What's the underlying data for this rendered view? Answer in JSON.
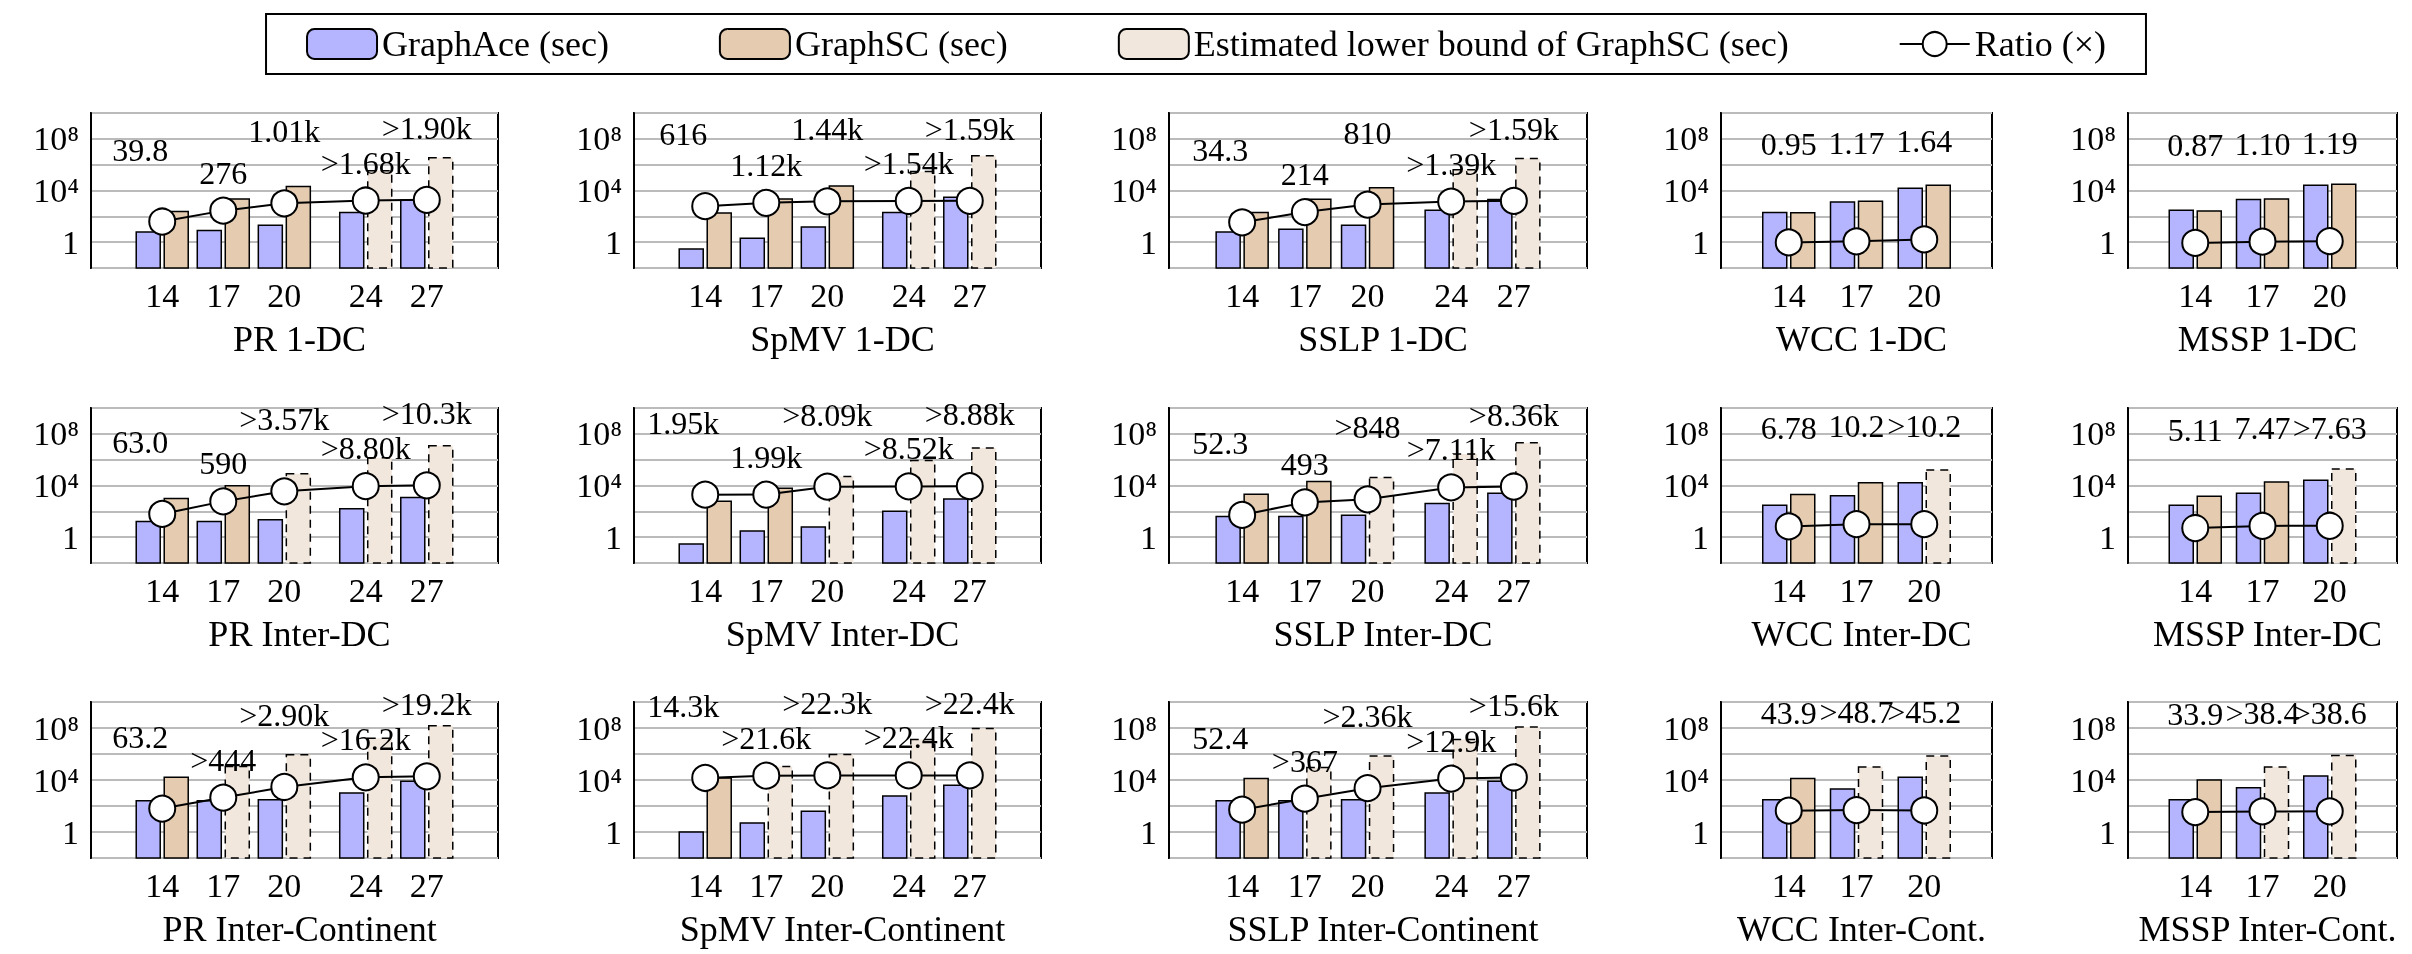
{
  "chart_data": [
    {
      "type": "bar",
      "title": "PR 1-DC",
      "x": [
        14,
        17,
        20,
        24,
        27
      ],
      "xlim": [
        10.5,
        30.5
      ],
      "xticks": [
        14,
        17,
        20,
        24,
        27
      ],
      "log": true,
      "ylim": [
        0.01,
        10000000000
      ],
      "yticks": [
        {
          "value": 1,
          "label": "1"
        },
        {
          "value": 10000,
          "label": "10⁴"
        },
        {
          "value": 100000000,
          "label": "10⁸"
        }
      ],
      "grid": "y",
      "legend": "top",
      "marker": "circle",
      "series": [
        {
          "name": "GraphAce (sec)",
          "type": "bar",
          "color": "#b4b4ff",
          "values": [
            6,
            8,
            20,
            200,
            1800
          ]
        },
        {
          "name": "GraphSC (sec)",
          "type": "bar",
          "color": "#e5ccb0",
          "values": [
            240,
            2200,
            20000,
            null,
            null
          ]
        },
        {
          "name": "Estimated lower bound of GraphSC (sec)",
          "type": "bar",
          "color": "#f2e7dc",
          "line_style": "dashed",
          "values": [
            null,
            null,
            null,
            340000,
            3400000
          ]
        },
        {
          "name": "Ratio (×)",
          "type": "line",
          "color": "#ffffff",
          "values": [
            39.8,
            276,
            1010,
            1680,
            1900
          ],
          "value_labels": [
            "39.8",
            "276",
            "1.01k",
            ">1.68k",
            ">1.90k"
          ]
        }
      ]
    },
    {
      "type": "bar",
      "title": "SpMV 1-DC",
      "x": [
        14,
        17,
        20,
        24,
        27
      ],
      "xlim": [
        10.5,
        30.5
      ],
      "xticks": [
        14,
        17,
        20,
        24,
        27
      ],
      "log": true,
      "ylim": [
        0.01,
        10000000000
      ],
      "yticks": [
        {
          "value": 1,
          "label": "1"
        },
        {
          "value": 10000,
          "label": "10⁴"
        },
        {
          "value": 100000000,
          "label": "10⁸"
        }
      ],
      "grid": "y",
      "marker": "circle",
      "series": [
        {
          "type": "bar",
          "color": "#b4b4ff",
          "values": [
            0.3,
            2,
            15,
            200,
            3000
          ]
        },
        {
          "type": "bar",
          "color": "#e5ccb0",
          "values": [
            185,
            2200,
            22000,
            null,
            null
          ]
        },
        {
          "type": "bar",
          "color": "#f2e7dc",
          "line_style": "dashed",
          "values": [
            null,
            null,
            null,
            300000,
            5000000
          ]
        },
        {
          "type": "line",
          "color": "#ffffff",
          "values": [
            616,
            1120,
            1440,
            1540,
            1590
          ],
          "value_labels": [
            "616",
            "1.12k",
            "1.44k",
            ">1.54k",
            ">1.59k"
          ]
        }
      ]
    },
    {
      "type": "bar",
      "title": "SSLP 1-DC",
      "x": [
        14,
        17,
        20,
        24,
        27
      ],
      "xlim": [
        10.5,
        30.5
      ],
      "xticks": [
        14,
        17,
        20,
        24,
        27
      ],
      "log": true,
      "ylim": [
        0.01,
        10000000000
      ],
      "yticks": [
        {
          "value": 1,
          "label": "1"
        },
        {
          "value": 10000,
          "label": "10⁴"
        },
        {
          "value": 100000000,
          "label": "10⁸"
        }
      ],
      "grid": "y",
      "marker": "circle",
      "series": [
        {
          "type": "bar",
          "color": "#b4b4ff",
          "values": [
            6,
            10,
            20,
            300,
            2000
          ]
        },
        {
          "type": "bar",
          "color": "#e5ccb0",
          "values": [
            200,
            2100,
            16000,
            null,
            null
          ]
        },
        {
          "type": "bar",
          "color": "#f2e7dc",
          "line_style": "dashed",
          "values": [
            null,
            null,
            null,
            400000,
            3000000
          ]
        },
        {
          "type": "line",
          "color": "#ffffff",
          "values": [
            34.3,
            214,
            810,
            1390,
            1590
          ],
          "value_labels": [
            "34.3",
            "214",
            "810",
            ">1.39k",
            ">1.59k"
          ]
        }
      ]
    },
    {
      "type": "bar",
      "title": "WCC 1-DC",
      "x": [
        14,
        17,
        20
      ],
      "xlim": [
        11,
        23
      ],
      "xticks": [
        14,
        17,
        20
      ],
      "log": true,
      "ylim": [
        0.01,
        10000000000
      ],
      "yticks": [
        {
          "value": 1,
          "label": "1"
        },
        {
          "value": 10000,
          "label": "10⁴"
        },
        {
          "value": 100000000,
          "label": "10⁸"
        }
      ],
      "grid": "y",
      "marker": "circle",
      "series": [
        {
          "type": "bar",
          "color": "#b4b4ff",
          "values": [
            200,
            1300,
            15000
          ]
        },
        {
          "type": "bar",
          "color": "#e5ccb0",
          "values": [
            190,
            1500,
            25000
          ]
        },
        {
          "type": "line",
          "color": "#ffffff",
          "values": [
            0.95,
            1.17,
            1.64
          ],
          "value_labels": [
            "0.95",
            "1.17",
            "1.64"
          ]
        }
      ]
    },
    {
      "type": "bar",
      "title": "MSSP 1-DC",
      "x": [
        14,
        17,
        20
      ],
      "xlim": [
        11,
        23
      ],
      "xticks": [
        14,
        17,
        20
      ],
      "log": true,
      "ylim": [
        0.01,
        10000000000
      ],
      "yticks": [
        {
          "value": 1,
          "label": "1"
        },
        {
          "value": 10000,
          "label": "10⁴"
        },
        {
          "value": 100000000,
          "label": "10⁸"
        }
      ],
      "grid": "y",
      "marker": "circle",
      "series": [
        {
          "type": "bar",
          "color": "#b4b4ff",
          "values": [
            300,
            2000,
            25000
          ]
        },
        {
          "type": "bar",
          "color": "#e5ccb0",
          "values": [
            260,
            2200,
            30000
          ]
        },
        {
          "type": "line",
          "color": "#ffffff",
          "values": [
            0.87,
            1.1,
            1.19
          ],
          "value_labels": [
            "0.87",
            "1.10",
            "1.19"
          ]
        }
      ]
    },
    {
      "type": "bar",
      "title": "PR Inter-DC",
      "x": [
        14,
        17,
        20,
        24,
        27
      ],
      "xlim": [
        10.5,
        30.5
      ],
      "xticks": [
        14,
        17,
        20,
        24,
        27
      ],
      "log": true,
      "ylim": [
        0.01,
        10000000000
      ],
      "yticks": [
        {
          "value": 1,
          "label": "1"
        },
        {
          "value": 10000,
          "label": "10⁴"
        },
        {
          "value": 100000000,
          "label": "10⁸"
        }
      ],
      "grid": "y",
      "marker": "circle",
      "series": [
        {
          "type": "bar",
          "color": "#b4b4ff",
          "values": [
            16,
            16,
            22,
            160,
            1200
          ]
        },
        {
          "type": "bar",
          "color": "#e5ccb0",
          "values": [
            1000,
            9400,
            null,
            null,
            null
          ]
        },
        {
          "type": "bar",
          "color": "#f2e7dc",
          "line_style": "dashed",
          "values": [
            null,
            null,
            80000,
            1400000,
            12000000
          ]
        },
        {
          "type": "line",
          "color": "#ffffff",
          "values": [
            63.0,
            590,
            3570,
            8800,
            10300
          ],
          "value_labels": [
            "63.0",
            "590",
            ">3.57k",
            ">8.80k",
            ">10.3k"
          ]
        }
      ]
    },
    {
      "type": "bar",
      "title": "SpMV Inter-DC",
      "x": [
        14,
        17,
        20,
        24,
        27
      ],
      "xlim": [
        10.5,
        30.5
      ],
      "xticks": [
        14,
        17,
        20,
        24,
        27
      ],
      "log": true,
      "ylim": [
        0.01,
        10000000000
      ],
      "yticks": [
        {
          "value": 1,
          "label": "1"
        },
        {
          "value": 10000,
          "label": "10⁴"
        },
        {
          "value": 100000000,
          "label": "10⁸"
        }
      ],
      "grid": "y",
      "marker": "circle",
      "series": [
        {
          "type": "bar",
          "color": "#b4b4ff",
          "values": [
            0.3,
            3,
            6,
            100,
            900
          ]
        },
        {
          "type": "bar",
          "color": "#e5ccb0",
          "values": [
            600,
            6000,
            null,
            null,
            null
          ]
        },
        {
          "type": "bar",
          "color": "#f2e7dc",
          "line_style": "dashed",
          "values": [
            null,
            null,
            50000,
            850000,
            8000000
          ]
        },
        {
          "type": "line",
          "color": "#ffffff",
          "values": [
            1950,
            1990,
            8090,
            8520,
            8880
          ],
          "value_labels": [
            "1.95k",
            "1.99k",
            ">8.09k",
            ">8.52k",
            ">8.88k"
          ]
        }
      ]
    },
    {
      "type": "bar",
      "title": "SSLP Inter-DC",
      "x": [
        14,
        17,
        20,
        24,
        27
      ],
      "xlim": [
        10.5,
        30.5
      ],
      "xticks": [
        14,
        17,
        20,
        24,
        27
      ],
      "log": true,
      "ylim": [
        0.01,
        10000000000
      ],
      "yticks": [
        {
          "value": 1,
          "label": "1"
        },
        {
          "value": 10000,
          "label": "10⁴"
        },
        {
          "value": 100000000,
          "label": "10⁸"
        }
      ],
      "grid": "y",
      "marker": "circle",
      "series": [
        {
          "type": "bar",
          "color": "#b4b4ff",
          "values": [
            40,
            40,
            50,
            400,
            2500
          ]
        },
        {
          "type": "bar",
          "color": "#e5ccb0",
          "values": [
            2100,
            20000,
            null,
            null,
            null
          ]
        },
        {
          "type": "bar",
          "color": "#f2e7dc",
          "line_style": "dashed",
          "values": [
            null,
            null,
            42000,
            2800000,
            20000000
          ]
        },
        {
          "type": "line",
          "color": "#ffffff",
          "values": [
            52.3,
            493,
            848,
            7110,
            8360
          ],
          "value_labels": [
            "52.3",
            "493",
            ">848",
            ">7.11k",
            ">8.36k"
          ]
        }
      ]
    },
    {
      "type": "bar",
      "title": "WCC Inter-DC",
      "x": [
        14,
        17,
        20
      ],
      "xlim": [
        11,
        23
      ],
      "xticks": [
        14,
        17,
        20
      ],
      "log": true,
      "ylim": [
        0.01,
        10000000000
      ],
      "yticks": [
        {
          "value": 1,
          "label": "1"
        },
        {
          "value": 10000,
          "label": "10⁴"
        },
        {
          "value": 100000000,
          "label": "10⁸"
        }
      ],
      "grid": "y",
      "marker": "circle",
      "series": [
        {
          "type": "bar",
          "color": "#b4b4ff",
          "values": [
            300,
            1600,
            16000
          ]
        },
        {
          "type": "bar",
          "color": "#e5ccb0",
          "values": [
            2000,
            16000,
            null
          ]
        },
        {
          "type": "bar",
          "color": "#f2e7dc",
          "line_style": "dashed",
          "values": [
            null,
            null,
            160000
          ]
        },
        {
          "type": "line",
          "color": "#ffffff",
          "values": [
            6.78,
            10.2,
            10.2
          ],
          "value_labels": [
            "6.78",
            "10.2",
            ">10.2"
          ]
        }
      ]
    },
    {
      "type": "bar",
      "title": "MSSP Inter-DC",
      "x": [
        14,
        17,
        20
      ],
      "xlim": [
        11,
        23
      ],
      "xticks": [
        14,
        17,
        20
      ],
      "log": true,
      "ylim": [
        0.01,
        10000000000
      ],
      "yticks": [
        {
          "value": 1,
          "label": "1"
        },
        {
          "value": 10000,
          "label": "10⁴"
        },
        {
          "value": 100000000,
          "label": "10⁸"
        }
      ],
      "grid": "y",
      "marker": "circle",
      "series": [
        {
          "type": "bar",
          "color": "#b4b4ff",
          "values": [
            300,
            2500,
            25000
          ]
        },
        {
          "type": "bar",
          "color": "#e5ccb0",
          "values": [
            1500,
            19000,
            null
          ]
        },
        {
          "type": "bar",
          "color": "#f2e7dc",
          "line_style": "dashed",
          "values": [
            null,
            null,
            190000
          ]
        },
        {
          "type": "line",
          "color": "#ffffff",
          "values": [
            5.11,
            7.47,
            7.63
          ],
          "value_labels": [
            "5.11",
            "7.47",
            ">7.63"
          ]
        }
      ]
    },
    {
      "type": "bar",
      "title": "PR Inter-Continent",
      "x": [
        14,
        17,
        20,
        24,
        27
      ],
      "xlim": [
        10.5,
        30.5
      ],
      "xticks": [
        14,
        17,
        20,
        24,
        27
      ],
      "log": true,
      "ylim": [
        0.01,
        10000000000
      ],
      "yticks": [
        {
          "value": 1,
          "label": "1"
        },
        {
          "value": 10000,
          "label": "10⁴"
        },
        {
          "value": 100000000,
          "label": "10⁸"
        }
      ],
      "grid": "y",
      "marker": "circle",
      "series": [
        {
          "type": "bar",
          "color": "#b4b4ff",
          "values": [
            250,
            250,
            300,
            1000,
            8000
          ]
        },
        {
          "type": "bar",
          "color": "#e5ccb0",
          "values": [
            16000,
            null,
            null,
            null,
            null
          ]
        },
        {
          "type": "bar",
          "color": "#f2e7dc",
          "line_style": "dashed",
          "values": [
            null,
            110000,
            870000,
            16000000,
            150000000
          ]
        },
        {
          "type": "line",
          "color": "#ffffff",
          "values": [
            63.2,
            444,
            2900,
            16200,
            19200
          ],
          "value_labels": [
            "63.2",
            ">444",
            ">2.90k",
            ">16.2k",
            ">19.2k"
          ]
        }
      ]
    },
    {
      "type": "bar",
      "title": "SpMV Inter-Continent",
      "x": [
        14,
        17,
        20,
        24,
        27
      ],
      "xlim": [
        10.5,
        30.5
      ],
      "xticks": [
        14,
        17,
        20,
        24,
        27
      ],
      "log": true,
      "ylim": [
        0.01,
        10000000000
      ],
      "yticks": [
        {
          "value": 1,
          "label": "1"
        },
        {
          "value": 10000,
          "label": "10⁴"
        },
        {
          "value": 100000000,
          "label": "10⁸"
        }
      ],
      "grid": "y",
      "marker": "circle",
      "series": [
        {
          "type": "bar",
          "color": "#b4b4ff",
          "values": [
            1,
            5,
            40,
            600,
            4000
          ]
        },
        {
          "type": "bar",
          "color": "#e5ccb0",
          "values": [
            14000,
            null,
            null,
            null,
            null
          ]
        },
        {
          "type": "bar",
          "color": "#f2e7dc",
          "line_style": "dashed",
          "values": [
            null,
            110000,
            900000,
            13000000,
            90000000
          ]
        },
        {
          "type": "line",
          "color": "#ffffff",
          "values": [
            14300,
            21600,
            22300,
            22400,
            22400
          ],
          "value_labels": [
            "14.3k",
            ">21.6k",
            ">22.3k",
            ">22.4k",
            ">22.4k"
          ]
        }
      ]
    },
    {
      "type": "bar",
      "title": "SSLP Inter-Continent",
      "x": [
        14,
        17,
        20,
        24,
        27
      ],
      "xlim": [
        10.5,
        30.5
      ],
      "xticks": [
        14,
        17,
        20,
        24,
        27
      ],
      "log": true,
      "ylim": [
        0.01,
        10000000000
      ],
      "yticks": [
        {
          "value": 1,
          "label": "1"
        },
        {
          "value": 10000,
          "label": "10⁴"
        },
        {
          "value": 100000000,
          "label": "10⁸"
        }
      ],
      "grid": "y",
      "marker": "circle",
      "series": [
        {
          "type": "bar",
          "color": "#b4b4ff",
          "values": [
            250,
            250,
            300,
            1000,
            8000
          ]
        },
        {
          "type": "bar",
          "color": "#e5ccb0",
          "values": [
            13000,
            null,
            null,
            null,
            null
          ]
        },
        {
          "type": "bar",
          "color": "#f2e7dc",
          "line_style": "dashed",
          "values": [
            null,
            90000,
            700000,
            13000000,
            120000000
          ]
        },
        {
          "type": "line",
          "color": "#ffffff",
          "values": [
            52.4,
            367,
            2360,
            12900,
            15600
          ],
          "value_labels": [
            "52.4",
            ">367",
            ">2.36k",
            ">12.9k",
            ">15.6k"
          ]
        }
      ]
    },
    {
      "type": "bar",
      "title": "WCC Inter-Cont.",
      "x": [
        14,
        17,
        20
      ],
      "xlim": [
        11,
        23
      ],
      "xticks": [
        14,
        17,
        20
      ],
      "log": true,
      "ylim": [
        0.01,
        10000000000
      ],
      "yticks": [
        {
          "value": 1,
          "label": "1"
        },
        {
          "value": 10000,
          "label": "10⁴"
        },
        {
          "value": 100000000,
          "label": "10⁸"
        }
      ],
      "grid": "y",
      "marker": "circle",
      "series": [
        {
          "type": "bar",
          "color": "#b4b4ff",
          "values": [
            300,
            2000,
            16000
          ]
        },
        {
          "type": "bar",
          "color": "#e5ccb0",
          "values": [
            13000,
            null,
            null
          ]
        },
        {
          "type": "bar",
          "color": "#f2e7dc",
          "line_style": "dashed",
          "values": [
            null,
            100000,
            700000
          ]
        },
        {
          "type": "line",
          "color": "#ffffff",
          "values": [
            43.9,
            48.7,
            45.2
          ],
          "value_labels": [
            "43.9",
            ">48.7",
            ">45.2"
          ]
        }
      ]
    },
    {
      "type": "bar",
      "title": "MSSP Inter-Cont.",
      "x": [
        14,
        17,
        20
      ],
      "xlim": [
        11,
        23
      ],
      "xticks": [
        14,
        17,
        20
      ],
      "log": true,
      "ylim": [
        0.01,
        10000000000
      ],
      "yticks": [
        {
          "value": 1,
          "label": "1"
        },
        {
          "value": 10000,
          "label": "10⁴"
        },
        {
          "value": 100000000,
          "label": "10⁸"
        }
      ],
      "grid": "y",
      "marker": "circle",
      "series": [
        {
          "type": "bar",
          "color": "#b4b4ff",
          "values": [
            300,
            2500,
            20000
          ]
        },
        {
          "type": "bar",
          "color": "#e5ccb0",
          "values": [
            10000,
            null,
            null
          ]
        },
        {
          "type": "bar",
          "color": "#f2e7dc",
          "line_style": "dashed",
          "values": [
            null,
            100000,
            770000
          ]
        },
        {
          "type": "line",
          "color": "#ffffff",
          "values": [
            33.9,
            38.4,
            38.6
          ],
          "value_labels": [
            "33.9",
            ">38.4",
            ">38.6"
          ]
        }
      ]
    }
  ]
}
